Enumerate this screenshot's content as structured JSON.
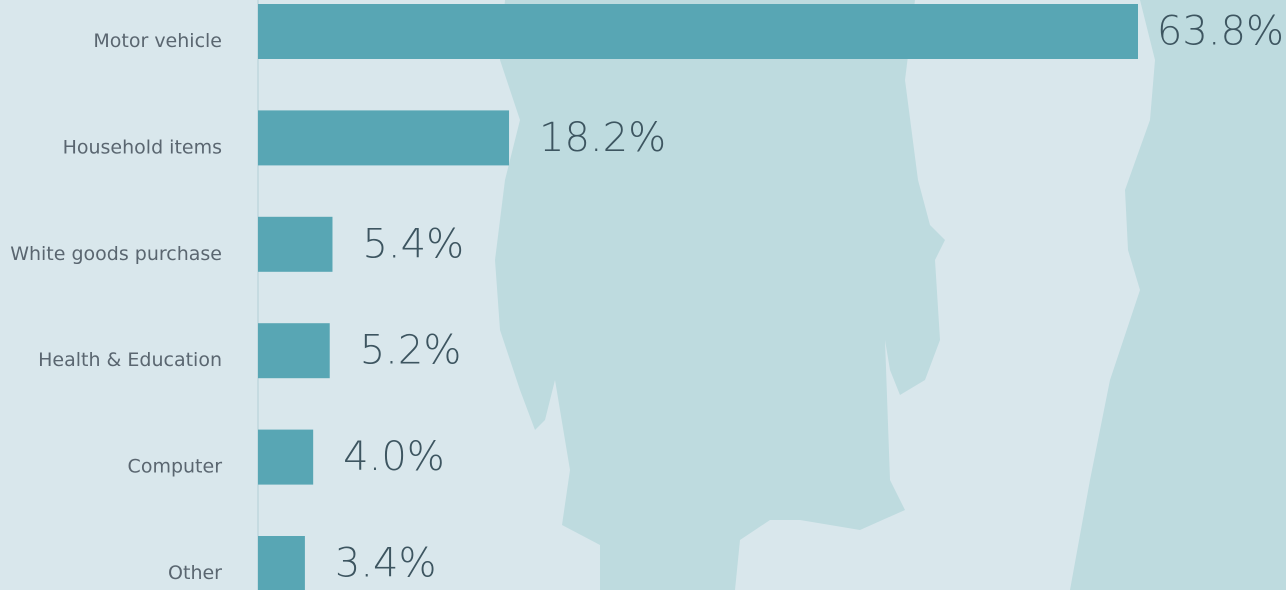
{
  "chart_data": {
    "type": "bar",
    "orientation": "horizontal",
    "categories": [
      "Motor vehicle",
      "Household items",
      "White goods purchase",
      "Health & Education",
      "Computer",
      "Other"
    ],
    "values": [
      63.8,
      18.2,
      5.4,
      5.2,
      4.0,
      3.4
    ],
    "value_labels": [
      "63.8%",
      "18.2%",
      "5.4%",
      "5.2%",
      "4.0%",
      "3.4%"
    ],
    "color": "#58a6b4"
  }
}
